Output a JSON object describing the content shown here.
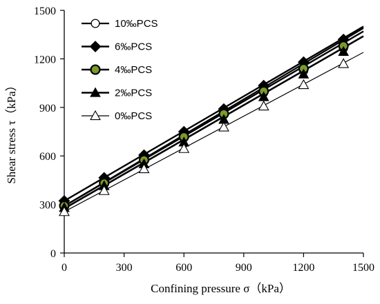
{
  "chart_data": {
    "type": "scatter",
    "xlabel": "Confining pressure σ（kPa）",
    "ylabel": "Shear stress τ（kPa）",
    "xlim": [
      0,
      1500
    ],
    "ylim": [
      0,
      1500
    ],
    "xticks": [
      "0",
      "300",
      "600",
      "900",
      "1200",
      "1500"
    ],
    "yticks": [
      "0",
      "300",
      "600",
      "900",
      "1200",
      "1500"
    ],
    "grid": false,
    "legend_position": "top-left",
    "series": [
      {
        "name": "10‰PCS",
        "marker": "circle-open",
        "color": "#000000",
        "x": [
          0,
          200,
          400,
          600,
          800,
          1000,
          1200,
          1400
        ],
        "y": [
          300,
          435,
          575,
          712,
          855,
          990,
          1125,
          1265
        ],
        "fit": [
          290,
          1390
        ]
      },
      {
        "name": "6‰PCS",
        "marker": "diamond-filled",
        "color": "#000000",
        "x": [
          0,
          200,
          400,
          600,
          800,
          1000,
          1200,
          1400
        ],
        "y": [
          322,
          465,
          605,
          750,
          890,
          1035,
          1180,
          1320
        ],
        "fit": [
          322,
          1400
        ]
      },
      {
        "name": "4‰PCS",
        "marker": "circle-filled-green",
        "color": "#000000",
        "fill": "#7a9a2a",
        "x": [
          0,
          200,
          400,
          600,
          800,
          1000,
          1200,
          1400
        ],
        "y": [
          292,
          432,
          575,
          718,
          860,
          1000,
          1140,
          1280
        ],
        "fit": [
          290,
          1370
        ]
      },
      {
        "name": "2‰PCS",
        "marker": "triangle-filled",
        "color": "#000000",
        "x": [
          0,
          200,
          400,
          600,
          800,
          1000,
          1200,
          1400
        ],
        "y": [
          280,
          415,
          550,
          685,
          825,
          965,
          1105,
          1245
        ],
        "fit": [
          275,
          1340
        ]
      },
      {
        "name": "0‰PCS",
        "marker": "triangle-open",
        "color": "#000000",
        "x": [
          0,
          200,
          400,
          600,
          800,
          1000,
          1200,
          1400
        ],
        "y": [
          255,
          385,
          520,
          645,
          778,
          908,
          1040,
          1170
        ],
        "fit": [
          255,
          1240
        ]
      }
    ]
  }
}
